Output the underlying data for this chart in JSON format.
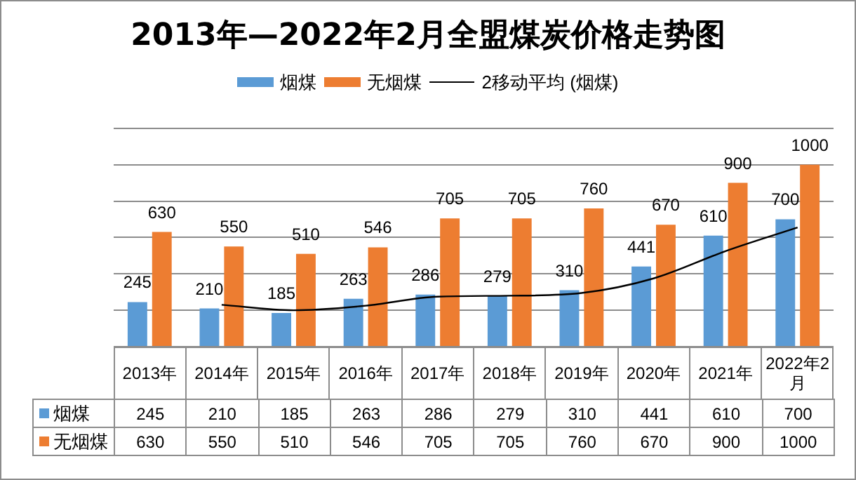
{
  "chart_data": [
    {
      "type": "bar",
      "title": "2013年—2022年2月全盟煤炭价格走势图",
      "categories": [
        "2013年",
        "2014年",
        "2015年",
        "2016年",
        "2017年",
        "2018年",
        "2019年",
        "2020年",
        "2021年",
        "2022年2月"
      ],
      "series": [
        {
          "name": "烟煤",
          "color": "#5b9bd5",
          "values": [
            245,
            210,
            185,
            263,
            286,
            279,
            310,
            441,
            610,
            700
          ],
          "value_labels": [
            "245",
            "210",
            "185",
            "263",
            "286",
            "279",
            "310",
            "441",
            "610",
            "700"
          ]
        },
        {
          "name": "无烟煤",
          "color": "#ed7d31",
          "values": [
            630,
            550,
            510,
            546,
            705,
            705,
            760,
            670,
            900,
            1000
          ],
          "value_labels": [
            "630",
            "550",
            "510",
            "546",
            "705",
            "705",
            "760",
            "670",
            "900",
            "1000"
          ]
        },
        {
          "name": "2移动平均 (烟煤)",
          "type": "line",
          "color": "#000000",
          "values": [
            null,
            230,
            200,
            225,
            275,
            280,
            295,
            375,
            525,
            655
          ],
          "marker": "none"
        }
      ],
      "ylim": [
        0,
        1200
      ],
      "yticks": [
        {
          "value": 0,
          "label": null
        },
        {
          "value": 200,
          "label": null
        },
        {
          "value": 400,
          "label": null
        },
        {
          "value": 600,
          "label": null
        },
        {
          "value": 800,
          "label": null
        },
        {
          "value": 1000,
          "label": null
        }
      ],
      "tick_labels": "x",
      "grid": "y",
      "legend": "top"
    },
    {
      "type": "other",
      "annotations": [
        "烟煤",
        "245",
        "210",
        "185",
        "263",
        "286",
        "279",
        "310",
        "441",
        "610",
        "700",
        "无烟煤",
        "630",
        "550",
        "510",
        "546",
        "705",
        "705",
        "760",
        "670",
        "900",
        "1000"
      ]
    }
  ]
}
